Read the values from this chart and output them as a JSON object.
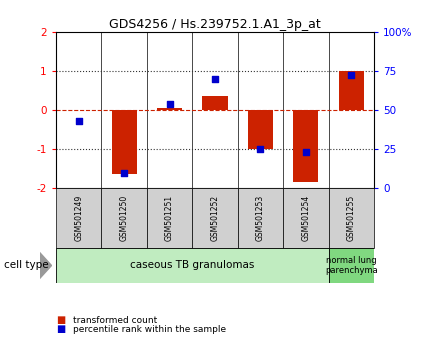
{
  "title": "GDS4256 / Hs.239752.1.A1_3p_at",
  "samples": [
    "GSM501249",
    "GSM501250",
    "GSM501251",
    "GSM501252",
    "GSM501253",
    "GSM501254",
    "GSM501255"
  ],
  "red_bars": [
    0.0,
    -1.65,
    0.05,
    0.35,
    -1.0,
    -1.85,
    1.0
  ],
  "blue_squares": [
    -0.3,
    -1.62,
    0.15,
    0.8,
    -1.0,
    -1.08,
    0.9
  ],
  "ylim": [
    -2,
    2
  ],
  "yticks_left": [
    -2,
    -1,
    0,
    1,
    2
  ],
  "yticks_right": [
    0,
    25,
    50,
    75,
    100
  ],
  "cell_type_groups": [
    {
      "label": "caseous TB granulomas",
      "span": [
        0,
        6
      ],
      "color": "#c0ecc0"
    },
    {
      "label": "normal lung\nparenchyma",
      "span": [
        6,
        7
      ],
      "color": "#80d880"
    }
  ],
  "cell_type_label": "cell type",
  "legend_red": "transformed count",
  "legend_blue": "percentile rank within the sample",
  "bar_color": "#cc2200",
  "square_color": "#0000cc",
  "zero_line_color": "#cc2200",
  "grid_line_color": "#333333",
  "label_box_color": "#d0d0d0",
  "bar_width": 0.55,
  "square_size": 18,
  "bg_color": "#ffffff"
}
